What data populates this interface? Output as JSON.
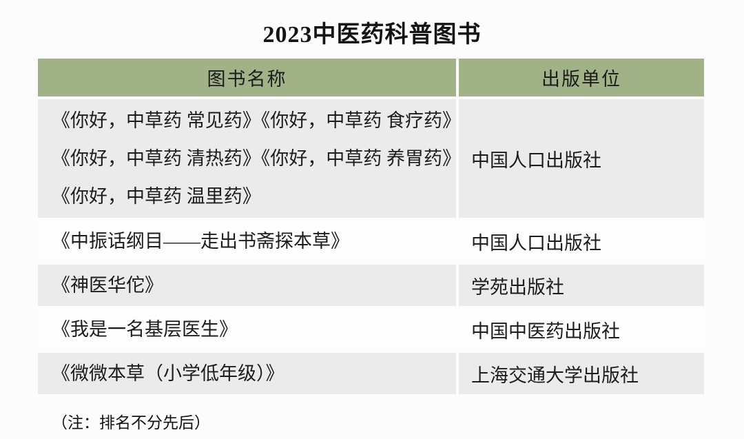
{
  "page_title": "2023中医药科普图书",
  "table": {
    "headers": [
      {
        "label": "图书名称"
      },
      {
        "label": "出版单位"
      }
    ],
    "rows": [
      {
        "lines": [
          "《你好，中草药 常见药》《你好，中草药 食疗药》",
          "《你好，中草药 清热药》《你好，中草药 养胃药》",
          "《你好，中草药 温里药》"
        ],
        "publisher": "中国人口出版社"
      },
      {
        "lines": [
          "《中振话纲目——走出书斋探本草》"
        ],
        "publisher": "中国人口出版社"
      },
      {
        "lines": [
          "《神医华佗》"
        ],
        "publisher": "学苑出版社"
      },
      {
        "lines": [
          "《我是一名基层医生》"
        ],
        "publisher": "中国中医药出版社"
      },
      {
        "lines": [
          "《微微本草（小学低年级）》"
        ],
        "publisher": "上海交通大学出版社"
      }
    ]
  },
  "note": "（注：排名不分先后）",
  "colors": {
    "header_bg": "#a1b287",
    "row_gray": "#ebebeb",
    "row_white": "#fdfdfd",
    "text": "#1c1c1c",
    "page_bg": "#fcfcfc"
  }
}
